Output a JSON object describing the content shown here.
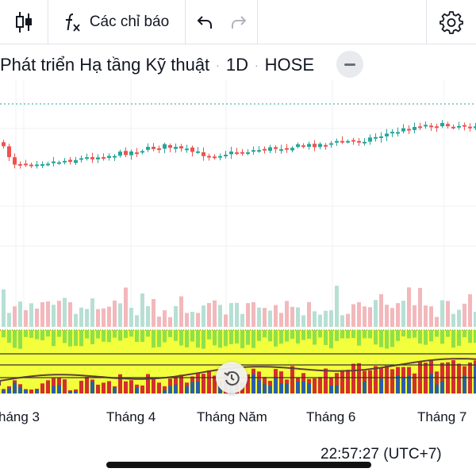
{
  "toolbar": {
    "indicators_label": "Các chỉ báo",
    "icons": [
      "candlestick-icon",
      "function-icon",
      "undo-icon",
      "redo-icon",
      "gear-icon"
    ]
  },
  "symbol": {
    "name": "Phát triển Hạ tầng Kỹ thuật",
    "interval": "1D",
    "exchange": "HOSE",
    "separator": "·"
  },
  "colors": {
    "up": "#26a69a",
    "down": "#ef5350",
    "volume_up": "#b7dfd4",
    "volume_down": "#f2b8bb",
    "osc_background": "#f3ff3c",
    "osc_top": "#8fe04b",
    "osc_red": "#d32f2f",
    "osc_blue": "#2c5ea8"
  },
  "time_axis": [
    "háng 3",
    "Tháng 4",
    "Tháng Năm",
    "Tháng 6",
    "Tháng 7"
  ],
  "clock": "22:57:27 (UTC+7)"
}
